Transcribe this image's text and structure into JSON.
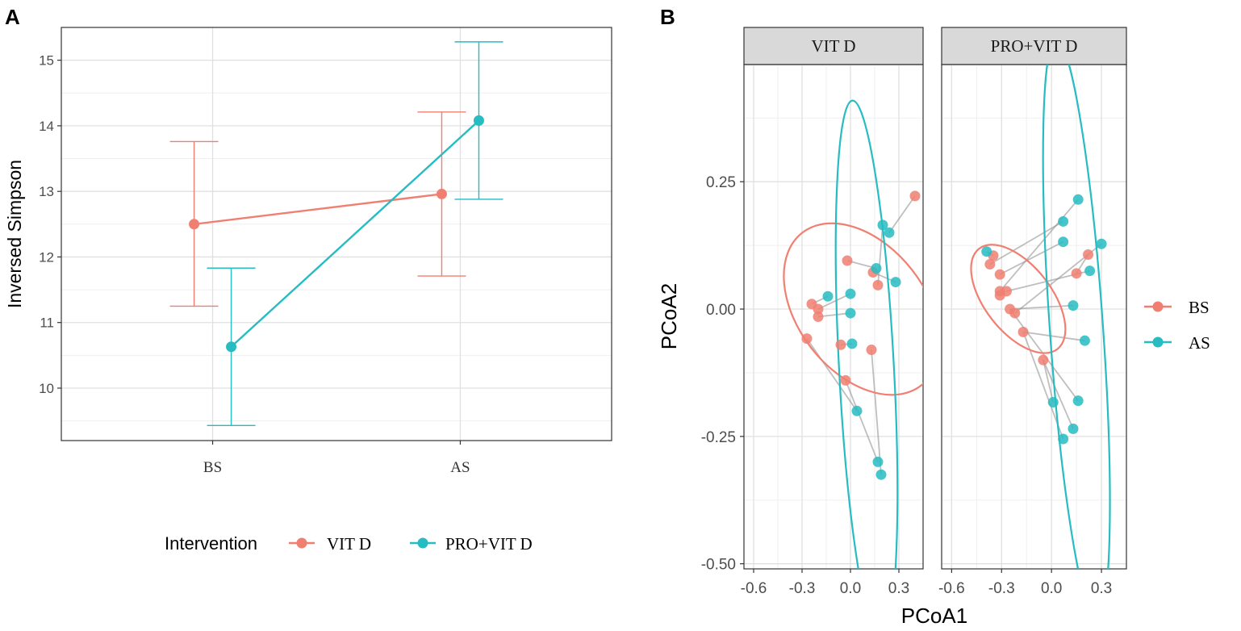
{
  "panels": {
    "a_label": "A",
    "b_label": "B"
  },
  "colors": {
    "bs": "#f07f72",
    "as": "#26bcc2",
    "grid_major": "#e0e0e0",
    "grid_minor": "#efefef",
    "strip_bg": "#d9d9d9"
  },
  "chart_data": [
    {
      "type": "line",
      "title": "",
      "xlabel": "",
      "ylabel": "Inversed Simpson",
      "categories": [
        "BS",
        "AS"
      ],
      "ylim": [
        9.2,
        15.5
      ],
      "yticks": [
        10,
        11,
        12,
        13,
        14,
        15
      ],
      "legend": {
        "title": "Intervention",
        "placement": "bottom"
      },
      "series": [
        {
          "name": "VIT D",
          "color": "#f07f72",
          "values": [
            12.5,
            12.96
          ],
          "lower": [
            11.25,
            11.71
          ],
          "upper": [
            13.76,
            14.21
          ]
        },
        {
          "name": "PRO+VIT D",
          "color": "#26bcc2",
          "values": [
            10.63,
            14.08
          ],
          "lower": [
            9.43,
            12.88
          ],
          "upper": [
            11.83,
            15.28
          ]
        }
      ]
    },
    {
      "type": "scatter",
      "title": "",
      "xlabel": "PCoA1",
      "ylabel": "PCoA2",
      "xlim": [
        -0.66,
        0.45
      ],
      "ylim": [
        -0.51,
        0.48
      ],
      "xticks": [
        -0.6,
        -0.3,
        0.0,
        0.3
      ],
      "xtick_labels": [
        "-0.6",
        "-0.3",
        "0.0",
        "0.3"
      ],
      "yticks": [
        -0.5,
        -0.25,
        0.0,
        0.25
      ],
      "ytick_labels": [
        "-0.50",
        "-0.25",
        "0.00",
        "0.25"
      ],
      "legend": {
        "placement": "right",
        "entries": [
          {
            "name": "BS",
            "color": "#f07f72"
          },
          {
            "name": "AS",
            "color": "#26bcc2"
          }
        ]
      },
      "facets": [
        {
          "name": "VIT D",
          "bs": [
            [
              -0.02,
              0.095
            ],
            [
              0.14,
              0.072
            ],
            [
              0.17,
              0.047
            ],
            [
              -0.24,
              0.01
            ],
            [
              -0.2,
              0.0
            ],
            [
              -0.2,
              -0.015
            ],
            [
              -0.27,
              -0.058
            ],
            [
              -0.06,
              -0.07
            ],
            [
              0.13,
              -0.08
            ],
            [
              -0.03,
              -0.14
            ],
            [
              0.4,
              0.222
            ]
          ],
          "as": [
            [
              0.2,
              0.165
            ],
            [
              0.24,
              0.15
            ],
            [
              0.16,
              0.08
            ],
            [
              0.28,
              0.053
            ],
            [
              0.0,
              0.03
            ],
            [
              -0.14,
              0.025
            ],
            [
              0.0,
              -0.008
            ],
            [
              0.01,
              -0.068
            ],
            [
              0.04,
              -0.2
            ],
            [
              0.17,
              -0.3
            ],
            [
              0.19,
              -0.325
            ]
          ],
          "lines": [
            [
              [
                -0.02,
                0.095
              ],
              [
                0.16,
                0.08
              ]
            ],
            [
              [
                0.14,
                0.072
              ],
              [
                0.28,
                0.053
              ]
            ],
            [
              [
                0.17,
                0.047
              ],
              [
                0.2,
                0.165
              ]
            ],
            [
              [
                -0.24,
                0.01
              ],
              [
                -0.14,
                0.025
              ]
            ],
            [
              [
                -0.2,
                0.0
              ],
              [
                0.0,
                0.03
              ]
            ],
            [
              [
                -0.2,
                -0.015
              ],
              [
                0.0,
                -0.008
              ]
            ],
            [
              [
                -0.27,
                -0.058
              ],
              [
                0.04,
                -0.2
              ]
            ],
            [
              [
                -0.06,
                -0.07
              ],
              [
                0.01,
                -0.068
              ]
            ],
            [
              [
                0.13,
                -0.08
              ],
              [
                0.19,
                -0.325
              ]
            ],
            [
              [
                -0.03,
                -0.14
              ],
              [
                0.17,
                -0.3
              ]
            ],
            [
              [
                0.4,
                0.222
              ],
              [
                0.24,
                0.15
              ]
            ]
          ],
          "ellipses": [
            {
              "group": "BS",
              "cx": 0.07,
              "cy": 0.0,
              "rx": 0.395,
              "ry": 0.19,
              "angle_deg": -38
            },
            {
              "group": "AS",
              "cx": 0.1,
              "cy": -0.12,
              "rx": 0.17,
              "ry": 0.53,
              "angle_deg": -3
            }
          ]
        },
        {
          "name": "PRO+VIT D",
          "bs": [
            [
              -0.35,
              0.105
            ],
            [
              -0.37,
              0.088
            ],
            [
              -0.31,
              0.068
            ],
            [
              -0.31,
              0.035
            ],
            [
              -0.27,
              0.035
            ],
            [
              -0.31,
              0.027
            ],
            [
              -0.25,
              0.0
            ],
            [
              -0.22,
              -0.008
            ],
            [
              -0.17,
              -0.045
            ],
            [
              -0.05,
              -0.1
            ],
            [
              0.15,
              0.07
            ],
            [
              0.22,
              0.107
            ]
          ],
          "as": [
            [
              -0.39,
              0.113
            ],
            [
              0.16,
              0.215
            ],
            [
              0.07,
              0.172
            ],
            [
              0.07,
              0.132
            ],
            [
              0.3,
              0.128
            ],
            [
              0.23,
              0.075
            ],
            [
              0.13,
              0.007
            ],
            [
              0.2,
              -0.062
            ],
            [
              0.16,
              -0.18
            ],
            [
              0.01,
              -0.183
            ],
            [
              0.13,
              -0.235
            ],
            [
              0.07,
              -0.255
            ]
          ],
          "lines": [
            [
              [
                -0.35,
                0.105
              ],
              [
                -0.39,
                0.113
              ]
            ],
            [
              [
                -0.37,
                0.088
              ],
              [
                0.07,
                0.172
              ]
            ],
            [
              [
                -0.31,
                0.068
              ],
              [
                0.07,
                0.132
              ]
            ],
            [
              [
                -0.31,
                0.035
              ],
              [
                0.16,
                0.215
              ]
            ],
            [
              [
                -0.27,
                0.035
              ],
              [
                0.23,
                0.075
              ]
            ],
            [
              [
                -0.25,
                0.0
              ],
              [
                0.13,
                0.007
              ]
            ],
            [
              [
                -0.22,
                -0.008
              ],
              [
                0.3,
                0.128
              ]
            ],
            [
              [
                -0.17,
                -0.045
              ],
              [
                0.2,
                -0.062
              ]
            ],
            [
              [
                -0.05,
                -0.1
              ],
              [
                0.13,
                -0.235
              ]
            ],
            [
              [
                -0.17,
                -0.045
              ],
              [
                0.07,
                -0.255
              ]
            ],
            [
              [
                -0.05,
                -0.1
              ],
              [
                0.01,
                -0.183
              ]
            ],
            [
              [
                -0.25,
                0.0
              ],
              [
                0.16,
                -0.18
              ]
            ],
            [
              [
                0.15,
                0.07
              ],
              [
                0.22,
                0.107
              ]
            ]
          ],
          "ellipses": [
            {
              "group": "BS",
              "cx": -0.2,
              "cy": 0.02,
              "rx": 0.2,
              "ry": 0.125,
              "angle_deg": -38
            },
            {
              "group": "AS",
              "cx": 0.15,
              "cy": -0.04,
              "rx": 0.16,
              "ry": 0.57,
              "angle_deg": -4
            }
          ]
        }
      ]
    }
  ]
}
